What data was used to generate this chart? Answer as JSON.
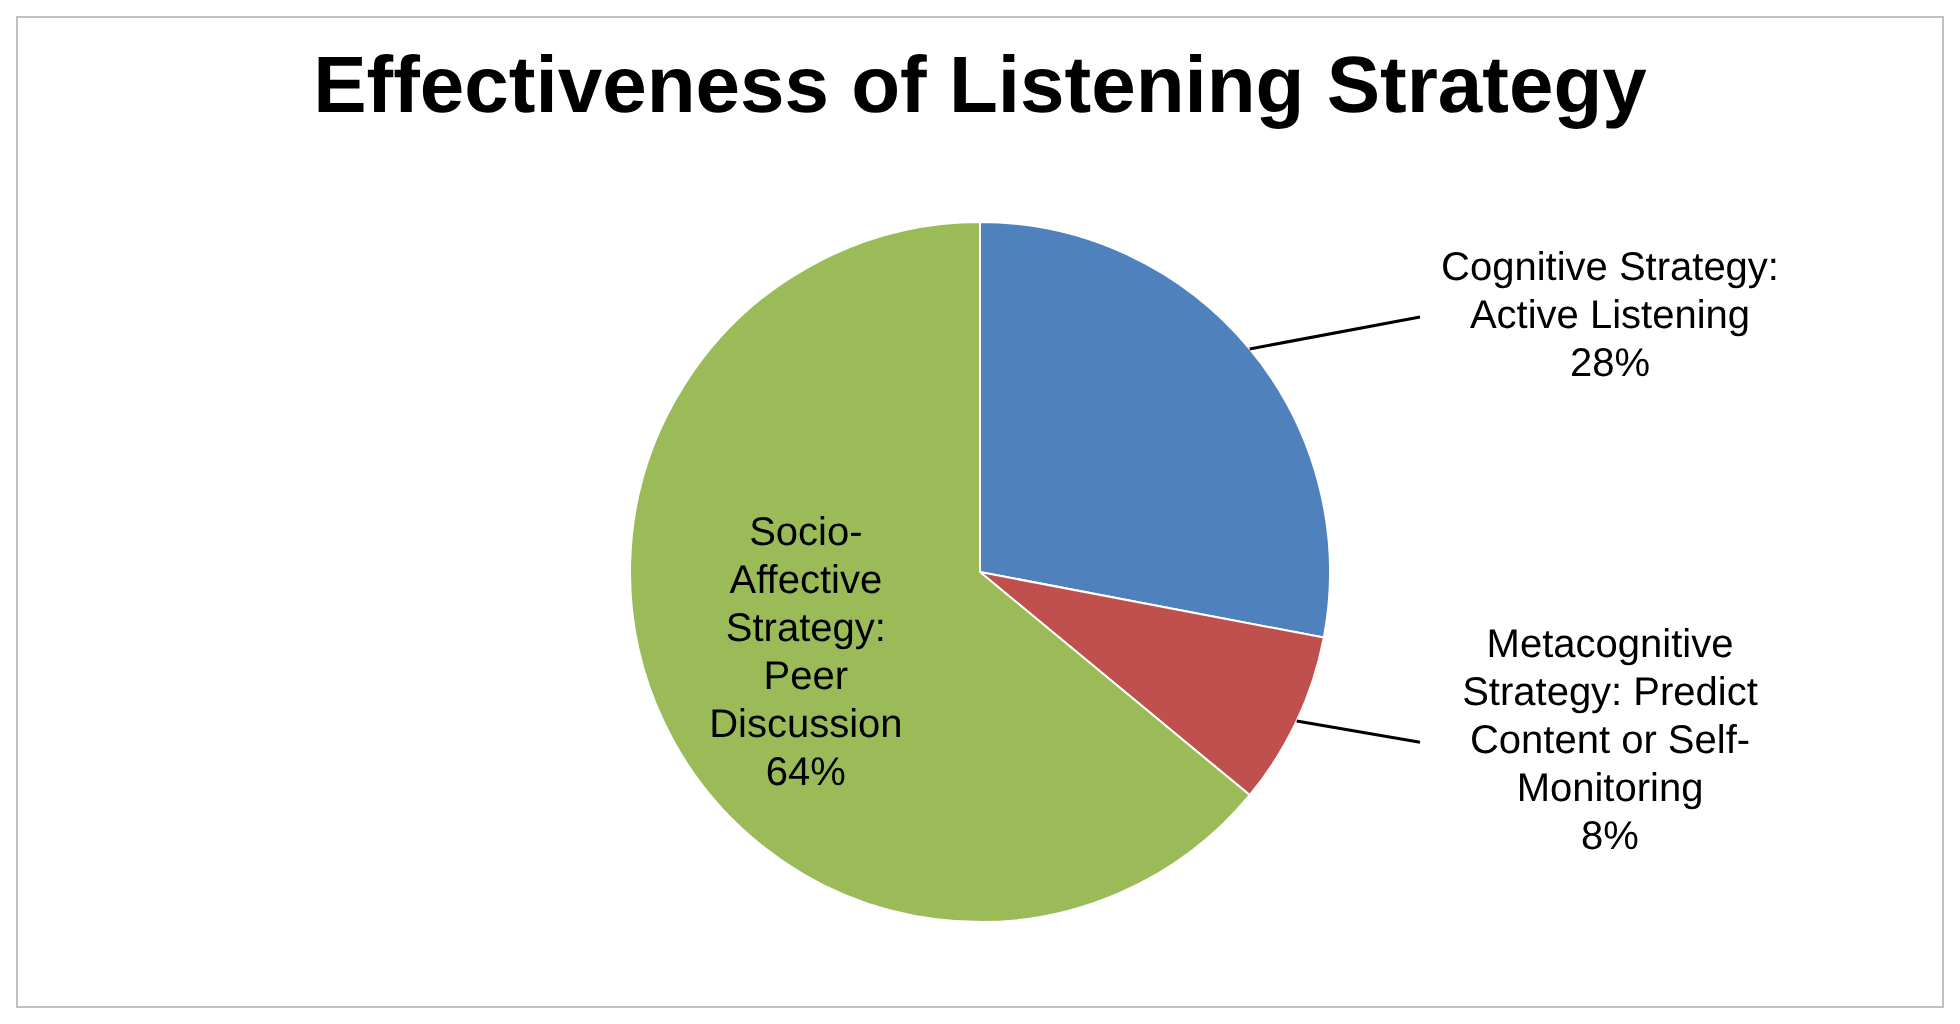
{
  "chart_data": {
    "type": "pie",
    "title": "Effectiveness of Listening Strategy",
    "categories": [
      "Cognitive Strategy: Active Listening",
      "Metacognitive Strategy: Predict Content or Self-Monitoring",
      "Socio-Affective Strategy: Peer Discussion"
    ],
    "values": [
      28,
      8,
      64
    ],
    "colors": [
      "#4f81bd",
      "#c0504d",
      "#9bbb59"
    ],
    "value_labels": [
      "28%",
      "8%",
      "64%"
    ],
    "legend": false
  }
}
